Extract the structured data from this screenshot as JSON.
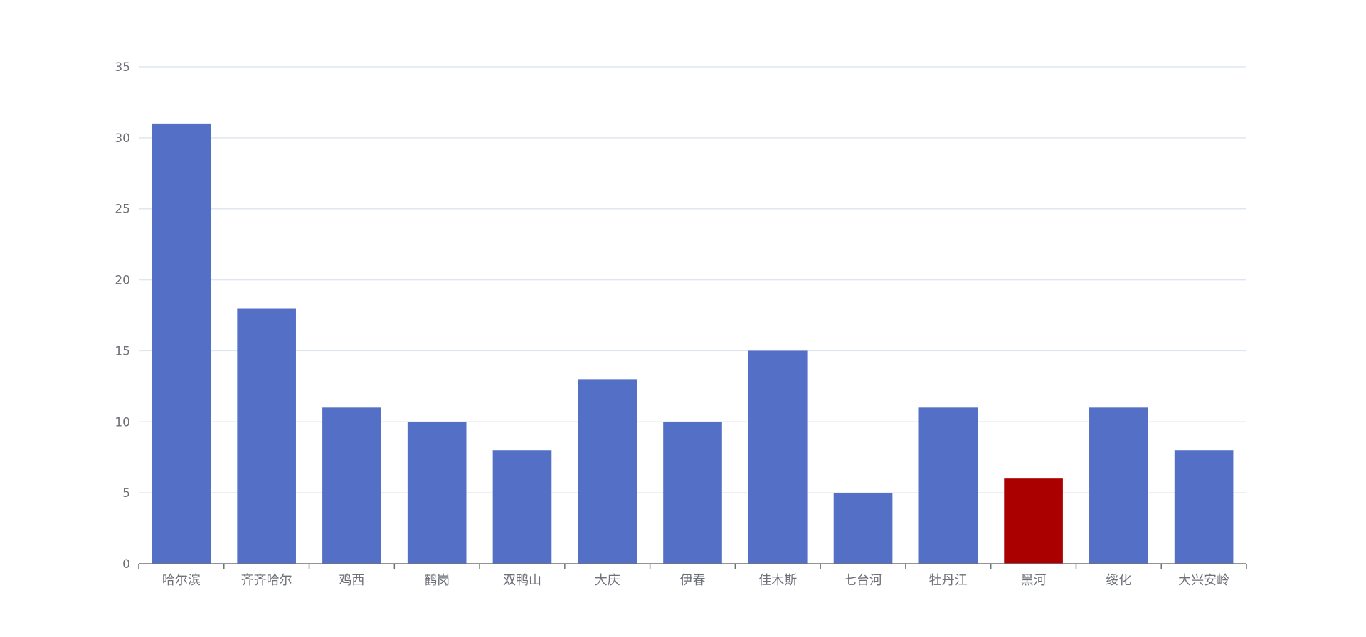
{
  "chart_data": {
    "type": "bar",
    "categories": [
      "哈尔滨",
      "齐齐哈尔",
      "鸡西",
      "鹤岗",
      "双鸭山",
      "大庆",
      "伊春",
      "佳木斯",
      "七台河",
      "牡丹江",
      "黑河",
      "绥化",
      "大兴安岭"
    ],
    "values": [
      31,
      18,
      11,
      10,
      8,
      13,
      10,
      15,
      5,
      11,
      6,
      11,
      8
    ],
    "title": "",
    "xlabel": "",
    "ylabel": "",
    "ylim": [
      0,
      35
    ],
    "yticks": [
      "0",
      "5",
      "10",
      "15",
      "20",
      "25",
      "30",
      "35"
    ],
    "grid": true,
    "legend": "none",
    "colors": {
      "default_bar": "#5470c6",
      "highlight_bar": "#aa0000",
      "grid_line": "#e0e6f1",
      "axis_line": "#6e7079",
      "label": "#6e7079"
    },
    "highlight_category": "黑河"
  }
}
